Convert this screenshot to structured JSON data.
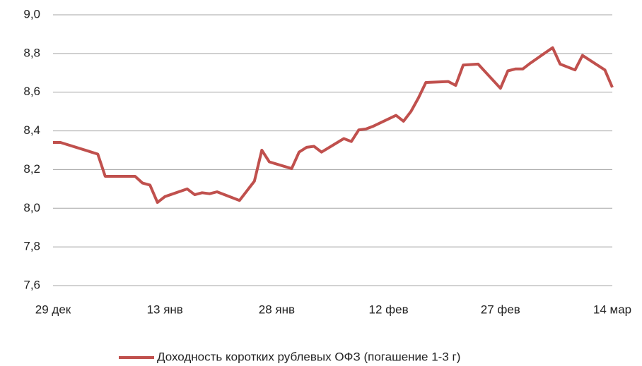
{
  "chart_data": {
    "type": "line",
    "x": [
      0,
      1,
      6,
      7,
      11,
      12,
      13,
      14,
      15,
      18,
      19,
      20,
      21,
      22,
      25,
      27,
      28,
      29,
      32,
      33,
      34,
      35,
      36,
      39,
      40,
      41,
      42,
      43,
      46,
      47,
      48,
      49,
      50,
      53,
      54,
      55,
      57,
      60,
      61,
      62,
      63,
      64,
      67,
      68,
      70,
      71,
      74,
      75
    ],
    "series": [
      {
        "name": "Доходность коротких рублевых ОФЗ (погашение 1-3 г)",
        "color": "#c0504d",
        "values": [
          8.34,
          8.34,
          8.28,
          8.165,
          8.165,
          8.13,
          8.12,
          8.03,
          8.06,
          8.1,
          8.07,
          8.08,
          8.075,
          8.085,
          8.04,
          8.14,
          8.3,
          8.24,
          8.205,
          8.29,
          8.315,
          8.32,
          8.29,
          8.36,
          8.345,
          8.405,
          8.41,
          8.425,
          8.48,
          8.45,
          8.5,
          8.57,
          8.65,
          8.655,
          8.635,
          8.74,
          8.745,
          8.62,
          8.71,
          8.72,
          8.72,
          8.75,
          8.83,
          8.745,
          8.715,
          8.79,
          8.715,
          8.625
        ]
      }
    ],
    "xlim": [
      0,
      75
    ],
    "xticks": [
      {
        "value": 0,
        "label": "29 дек"
      },
      {
        "value": 15,
        "label": "13 янв"
      },
      {
        "value": 30,
        "label": "28 янв"
      },
      {
        "value": 45,
        "label": "12 фев"
      },
      {
        "value": 60,
        "label": "27 фев"
      },
      {
        "value": 75,
        "label": "14 мар"
      }
    ],
    "ylim": [
      7.6,
      9.0
    ],
    "yticks": [
      {
        "value": 7.6,
        "label": "7,6"
      },
      {
        "value": 7.8,
        "label": "7,8"
      },
      {
        "value": 8.0,
        "label": "8,0"
      },
      {
        "value": 8.2,
        "label": "8,2"
      },
      {
        "value": 8.4,
        "label": "8,4"
      },
      {
        "value": 8.6,
        "label": "8,6"
      },
      {
        "value": 8.8,
        "label": "8,8"
      },
      {
        "value": 9.0,
        "label": "9,0"
      }
    ],
    "grid": true,
    "legend": "bottom"
  }
}
